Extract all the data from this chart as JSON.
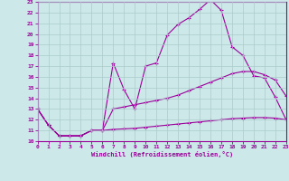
{
  "xlabel": "Windchill (Refroidissement éolien,°C)",
  "background_color": "#cce8e8",
  "grid_color": "#aacccc",
  "line_color": "#990099",
  "xlim": [
    0,
    23
  ],
  "ylim": [
    10,
    23
  ],
  "xticks": [
    0,
    1,
    2,
    3,
    4,
    5,
    6,
    7,
    8,
    9,
    10,
    11,
    12,
    13,
    14,
    15,
    16,
    17,
    18,
    19,
    20,
    21,
    22,
    23
  ],
  "yticks": [
    10,
    11,
    12,
    13,
    14,
    15,
    16,
    17,
    18,
    19,
    20,
    21,
    22,
    23
  ],
  "curve1_x": [
    0,
    1,
    2,
    3,
    4,
    5,
    6,
    7,
    8,
    9,
    10,
    11,
    12,
    13,
    14,
    15,
    16,
    17,
    18,
    19,
    20,
    21,
    22,
    23
  ],
  "curve1_y": [
    13.0,
    11.5,
    10.5,
    10.5,
    10.5,
    11.0,
    11.0,
    17.3,
    14.8,
    13.0,
    17.0,
    17.3,
    19.9,
    20.9,
    21.5,
    22.3,
    23.2,
    22.2,
    18.8,
    18.0,
    16.1,
    15.9,
    14.1,
    12.0
  ],
  "curve2_x": [
    0,
    1,
    2,
    3,
    4,
    5,
    6,
    7,
    8,
    9,
    10,
    11,
    12,
    13,
    14,
    15,
    16,
    17,
    18,
    19,
    20,
    21,
    22,
    23
  ],
  "curve2_y": [
    13.0,
    11.5,
    10.5,
    10.5,
    10.5,
    11.0,
    11.0,
    13.0,
    13.2,
    13.4,
    13.6,
    13.8,
    14.0,
    14.3,
    14.7,
    15.1,
    15.5,
    15.9,
    16.3,
    16.5,
    16.5,
    16.2,
    15.7,
    14.2
  ],
  "curve3_x": [
    0,
    1,
    2,
    3,
    4,
    5,
    6,
    7,
    8,
    9,
    10,
    11,
    12,
    13,
    14,
    15,
    16,
    17,
    18,
    19,
    20,
    21,
    22,
    23
  ],
  "curve3_y": [
    13.0,
    11.5,
    10.5,
    10.5,
    10.5,
    11.0,
    11.0,
    11.1,
    11.15,
    11.2,
    11.3,
    11.4,
    11.5,
    11.6,
    11.7,
    11.8,
    11.9,
    12.0,
    12.1,
    12.15,
    12.2,
    12.2,
    12.15,
    12.0
  ]
}
